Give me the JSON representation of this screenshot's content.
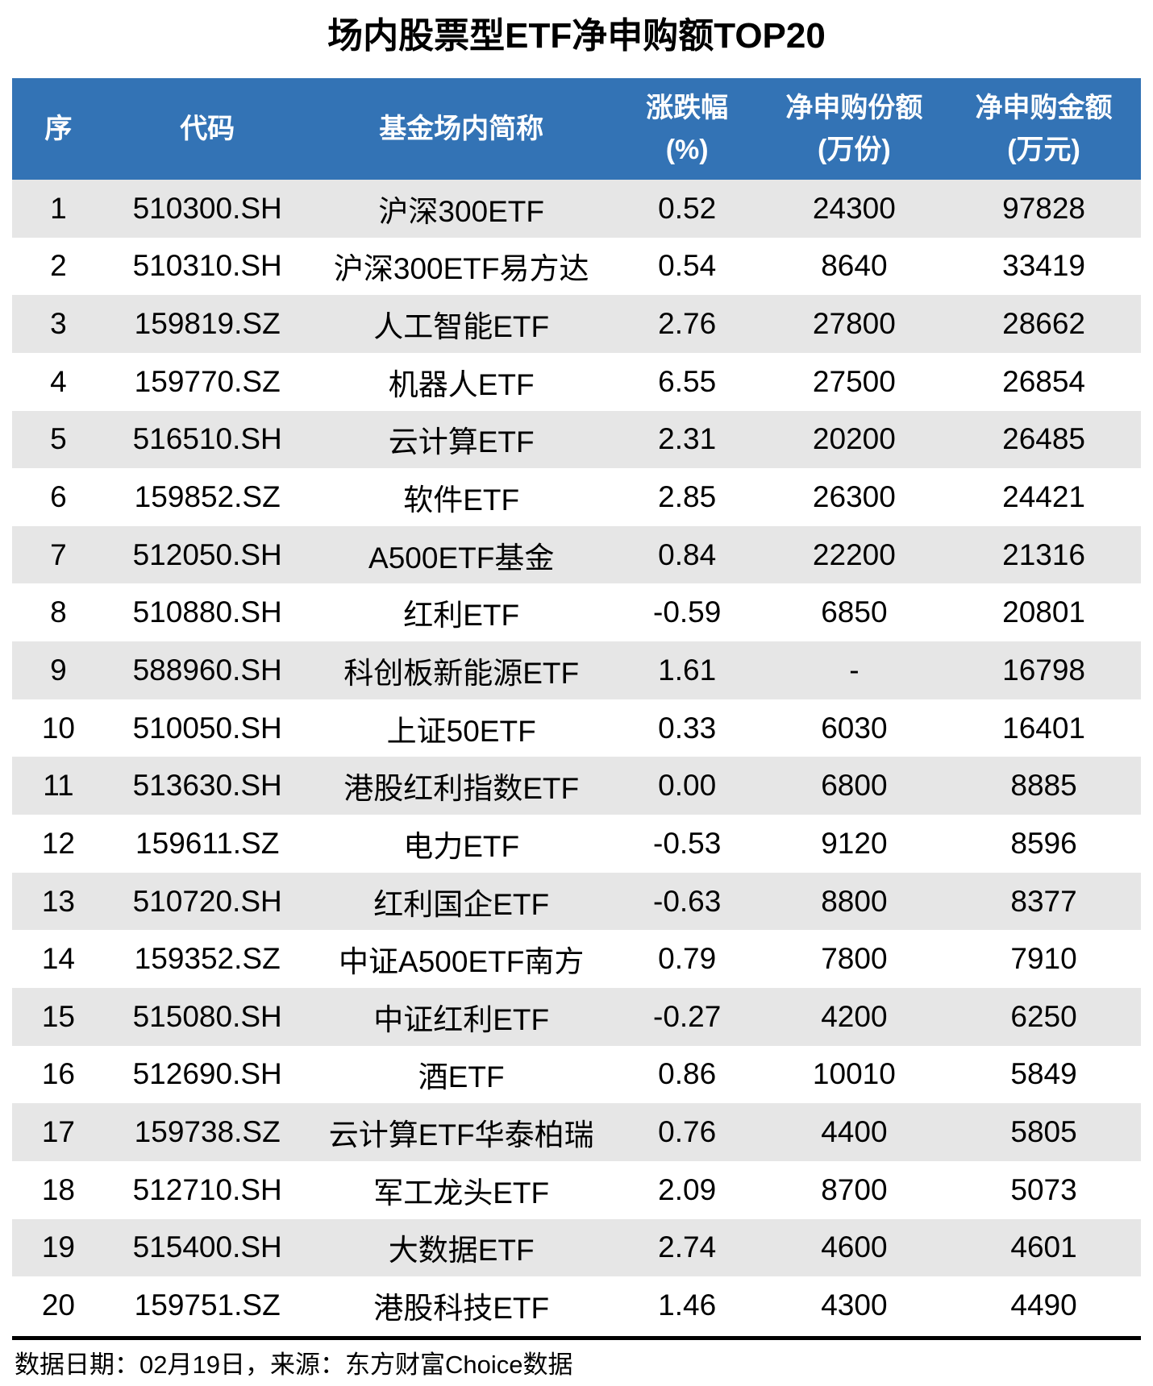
{
  "title": "场内股票型ETF净申购额TOP20",
  "colors": {
    "header_bg": "#3373b5",
    "header_text": "#ffffff",
    "row_alt_bg": "#e6e6e6",
    "row_bg": "#ffffff",
    "text": "#000000",
    "divider": "#000000"
  },
  "chart_data": {
    "type": "table",
    "title": "场内股票型ETF净申购额TOP20",
    "columns": [
      {
        "label": "序",
        "sub": ""
      },
      {
        "label": "代码",
        "sub": ""
      },
      {
        "label": "基金场内简称",
        "sub": ""
      },
      {
        "label": "涨跌幅",
        "sub": "(%)"
      },
      {
        "label": "净申购份额",
        "sub": "(万份)"
      },
      {
        "label": "净申购金额",
        "sub": "(万元)"
      }
    ],
    "rows": [
      [
        "1",
        "510300.SH",
        "沪深300ETF",
        "0.52",
        "24300",
        "97828"
      ],
      [
        "2",
        "510310.SH",
        "沪深300ETF易方达",
        "0.54",
        "8640",
        "33419"
      ],
      [
        "3",
        "159819.SZ",
        "人工智能ETF",
        "2.76",
        "27800",
        "28662"
      ],
      [
        "4",
        "159770.SZ",
        "机器人ETF",
        "6.55",
        "27500",
        "26854"
      ],
      [
        "5",
        "516510.SH",
        "云计算ETF",
        "2.31",
        "20200",
        "26485"
      ],
      [
        "6",
        "159852.SZ",
        "软件ETF",
        "2.85",
        "26300",
        "24421"
      ],
      [
        "7",
        "512050.SH",
        "A500ETF基金",
        "0.84",
        "22200",
        "21316"
      ],
      [
        "8",
        "510880.SH",
        "红利ETF",
        "-0.59",
        "6850",
        "20801"
      ],
      [
        "9",
        "588960.SH",
        "科创板新能源ETF",
        "1.61",
        "-",
        "16798"
      ],
      [
        "10",
        "510050.SH",
        "上证50ETF",
        "0.33",
        "6030",
        "16401"
      ],
      [
        "11",
        "513630.SH",
        "港股红利指数ETF",
        "0.00",
        "6800",
        "8885"
      ],
      [
        "12",
        "159611.SZ",
        "电力ETF",
        "-0.53",
        "9120",
        "8596"
      ],
      [
        "13",
        "510720.SH",
        "红利国企ETF",
        "-0.63",
        "8800",
        "8377"
      ],
      [
        "14",
        "159352.SZ",
        "中证A500ETF南方",
        "0.79",
        "7800",
        "7910"
      ],
      [
        "15",
        "515080.SH",
        "中证红利ETF",
        "-0.27",
        "4200",
        "6250"
      ],
      [
        "16",
        "512690.SH",
        "酒ETF",
        "0.86",
        "10010",
        "5849"
      ],
      [
        "17",
        "159738.SZ",
        "云计算ETF华泰柏瑞",
        "0.76",
        "4400",
        "5805"
      ],
      [
        "18",
        "512710.SH",
        "军工龙头ETF",
        "2.09",
        "8700",
        "5073"
      ],
      [
        "19",
        "515400.SH",
        "大数据ETF",
        "2.74",
        "4600",
        "4601"
      ],
      [
        "20",
        "159751.SZ",
        "港股科技ETF",
        "1.46",
        "4300",
        "4490"
      ]
    ]
  },
  "footer": {
    "note": "数据日期：02月19日，来源：东方财富Choice数据"
  }
}
